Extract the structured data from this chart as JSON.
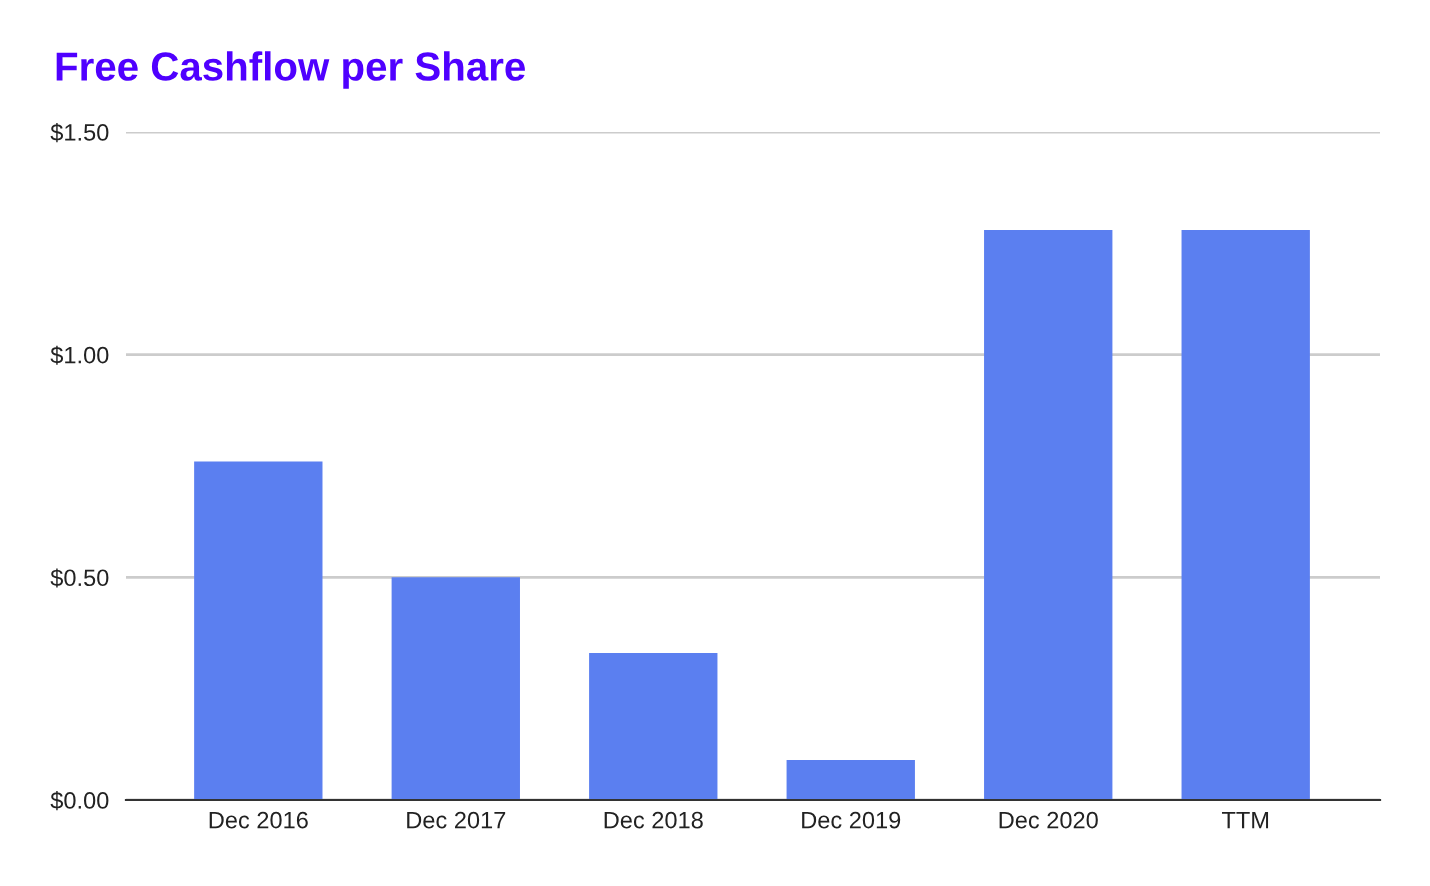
{
  "chart_data": {
    "type": "bar",
    "title": "Free Cashflow per Share",
    "categories": [
      "Dec 2016",
      "Dec 2017",
      "Dec 2018",
      "Dec 2019",
      "Dec 2020",
      "TTM"
    ],
    "values": [
      0.76,
      0.5,
      0.33,
      0.09,
      1.28,
      1.28
    ],
    "color": "#5b7ff0",
    "ylim": [
      0,
      1.5
    ],
    "yticks": [
      {
        "value": 0,
        "label": "$0.00"
      },
      {
        "value": 0.5,
        "label": "$0.50"
      },
      {
        "value": 1.0,
        "label": "$1.00"
      },
      {
        "value": 1.5,
        "label": "$1.50"
      }
    ],
    "grid": "y",
    "legend": false
  }
}
